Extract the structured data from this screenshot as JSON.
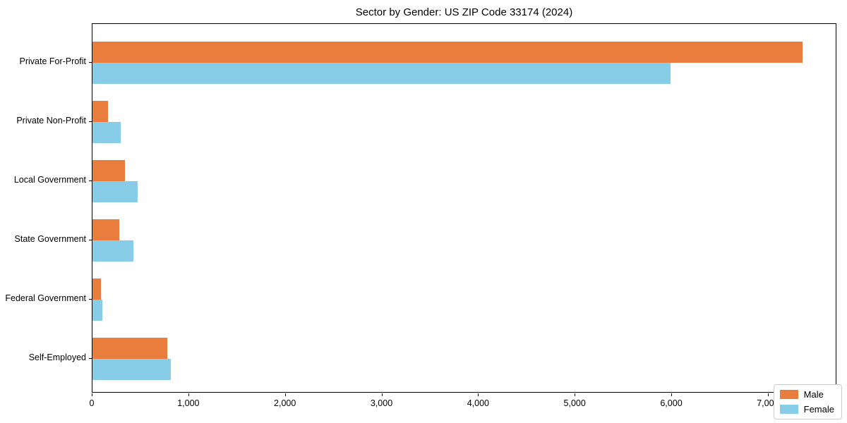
{
  "chart_data": {
    "type": "bar",
    "orientation": "horizontal",
    "title": "Sector by Gender: US ZIP Code 33174 (2024)",
    "categories": [
      "Private For-Profit",
      "Private Non-Profit",
      "Local Government",
      "State Government",
      "Federal Government",
      "Self-Employed"
    ],
    "series": [
      {
        "name": "Male",
        "color": "#e87d3d",
        "values": [
          7350,
          160,
          335,
          280,
          90,
          775
        ]
      },
      {
        "name": "Female",
        "color": "#87cde8",
        "values": [
          5985,
          290,
          470,
          425,
          100,
          810
        ]
      }
    ],
    "xlabel": "",
    "ylabel": "",
    "xlim": [
      0,
      7710
    ],
    "xticks": [
      0,
      1000,
      2000,
      3000,
      4000,
      5000,
      6000,
      7000
    ],
    "xtick_labels": [
      "0",
      "1,000",
      "2,000",
      "3,000",
      "4,000",
      "5,000",
      "6,000",
      "7,000"
    ],
    "grid": false,
    "legend": {
      "position": "lower right"
    }
  }
}
